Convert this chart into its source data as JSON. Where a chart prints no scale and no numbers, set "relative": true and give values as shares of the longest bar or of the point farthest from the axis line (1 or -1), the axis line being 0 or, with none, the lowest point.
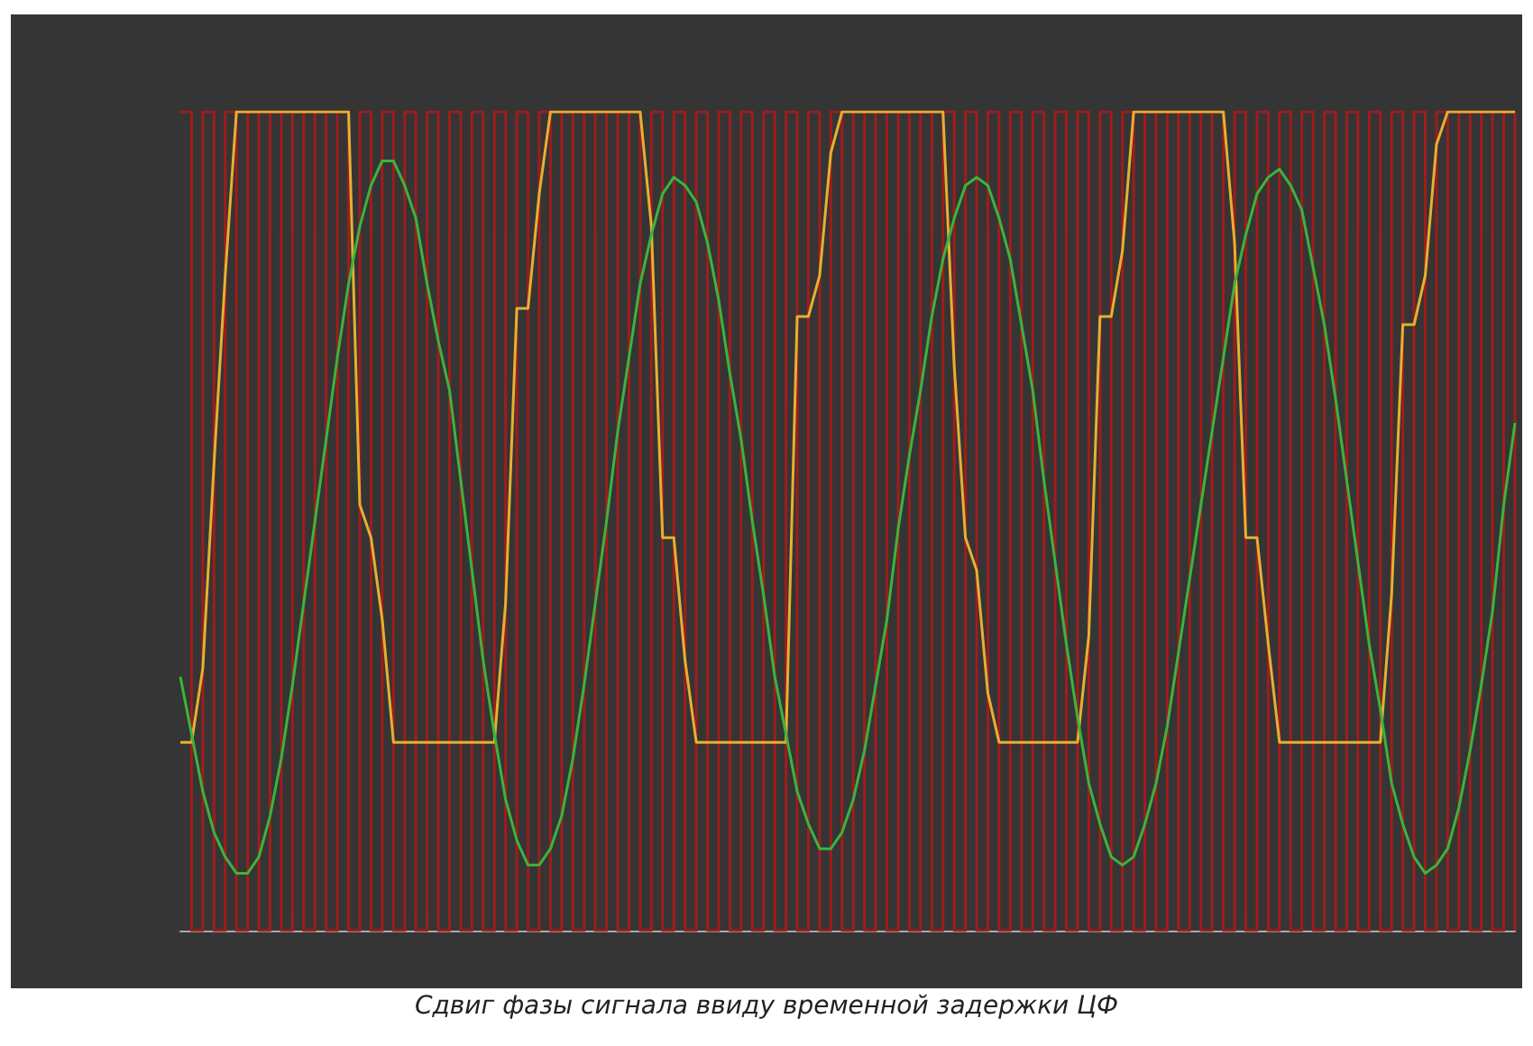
{
  "chart_data": {
    "type": "line",
    "relative": true,
    "marker": "none",
    "annotations": [
      "Сдвиг фазы сигнала ввиду временной задержки ЦФ"
    ],
    "categories": [
      null,
      null,
      null,
      null,
      null,
      null,
      null,
      null,
      null,
      null,
      null,
      null,
      null,
      null,
      null,
      null,
      null,
      null,
      null,
      null,
      null,
      null,
      null,
      null,
      null,
      null,
      null,
      null,
      null,
      null,
      null,
      null,
      null,
      null,
      null,
      null,
      null,
      null,
      null,
      null,
      null,
      null,
      null,
      null,
      null,
      null,
      null,
      null,
      null,
      null,
      null,
      null,
      null,
      null,
      null,
      null,
      null,
      null,
      null,
      null,
      null,
      null,
      null,
      null,
      null,
      null,
      null,
      null,
      null,
      null,
      null,
      null,
      null,
      null,
      null,
      null,
      null,
      null,
      null,
      null,
      null,
      null,
      null,
      null,
      null,
      null,
      null,
      null,
      null,
      null,
      null,
      null,
      null,
      null,
      null,
      null,
      null,
      null,
      null,
      null,
      null,
      null,
      null,
      null,
      null,
      null,
      null,
      null,
      null,
      null,
      null,
      null,
      null,
      null,
      null,
      null,
      null,
      null,
      null,
      null
    ],
    "series": [
      {
        "type": "step",
        "color": "#a01c1c",
        "values": [
          1,
          0,
          1,
          0,
          1,
          0,
          1,
          0,
          1,
          0,
          1,
          0,
          1,
          0,
          1,
          0,
          1,
          0,
          1,
          0,
          1,
          0,
          1,
          0,
          1,
          0,
          1,
          0,
          1,
          0,
          1,
          0,
          1,
          0,
          1,
          0,
          1,
          0,
          1,
          0,
          1,
          0,
          1,
          0,
          1,
          0,
          1,
          0,
          1,
          0,
          1,
          0,
          1,
          0,
          1,
          0,
          1,
          0,
          1,
          0,
          1,
          0,
          1,
          0,
          1,
          0,
          1,
          0,
          1,
          0,
          1,
          0,
          1,
          0,
          1,
          0,
          1,
          0,
          1,
          0,
          1,
          0,
          1,
          0,
          1,
          0,
          1,
          0,
          1,
          0,
          1,
          0,
          1,
          0,
          1,
          0,
          1,
          0,
          1,
          0,
          1,
          0,
          1,
          0,
          1,
          0,
          1,
          0,
          1,
          0,
          1,
          0,
          1,
          0,
          1,
          0,
          1,
          0,
          1,
          0
        ]
      },
      {
        "color": "#e6b030",
        "values": [
          0.23,
          0.23,
          0.32,
          0.57,
          0.8,
          1,
          1,
          1,
          1,
          1,
          1,
          1,
          1,
          1,
          1,
          1,
          0.52,
          0.48,
          0.38,
          0.23,
          0.23,
          0.23,
          0.23,
          0.23,
          0.23,
          0.23,
          0.23,
          0.23,
          0.23,
          0.4,
          0.76,
          0.76,
          0.9,
          1,
          1,
          1,
          1,
          1,
          1,
          1,
          1,
          1,
          0.86,
          0.48,
          0.48,
          0.33,
          0.23,
          0.23,
          0.23,
          0.23,
          0.23,
          0.23,
          0.23,
          0.23,
          0.23,
          0.75,
          0.75,
          0.8,
          0.95,
          1,
          1,
          1,
          1,
          1,
          1,
          1,
          1,
          1,
          1,
          0.69,
          0.48,
          0.44,
          0.29,
          0.23,
          0.23,
          0.23,
          0.23,
          0.23,
          0.23,
          0.23,
          0.23,
          0.36,
          0.75,
          0.75,
          0.83,
          1,
          1,
          1,
          1,
          1,
          1,
          1,
          1,
          1,
          0.84,
          0.48,
          0.48,
          0.35,
          0.23,
          0.23,
          0.23,
          0.23,
          0.23,
          0.23,
          0.23,
          0.23,
          0.23,
          0.23,
          0.41,
          0.74,
          0.74,
          0.8,
          0.96,
          1,
          1,
          1,
          1,
          1,
          1,
          1
        ]
      },
      {
        "color": "#3cb43c",
        "values": [
          0.31,
          0.24,
          0.17,
          0.12,
          0.09,
          0.07,
          0.07,
          0.09,
          0.14,
          0.21,
          0.3,
          0.4,
          0.5,
          0.6,
          0.7,
          0.79,
          0.86,
          0.91,
          0.94,
          0.94,
          0.91,
          0.87,
          0.79,
          0.72,
          0.66,
          0.55,
          0.44,
          0.33,
          0.24,
          0.16,
          0.11,
          0.08,
          0.08,
          0.1,
          0.14,
          0.21,
          0.3,
          0.4,
          0.5,
          0.61,
          0.7,
          0.79,
          0.85,
          0.9,
          0.92,
          0.91,
          0.89,
          0.84,
          0.77,
          0.68,
          0.6,
          0.5,
          0.41,
          0.31,
          0.24,
          0.17,
          0.13,
          0.1,
          0.1,
          0.12,
          0.16,
          0.22,
          0.3,
          0.38,
          0.49,
          0.58,
          0.66,
          0.75,
          0.82,
          0.87,
          0.91,
          0.92,
          0.91,
          0.87,
          0.82,
          0.74,
          0.66,
          0.55,
          0.45,
          0.35,
          0.26,
          0.18,
          0.13,
          0.09,
          0.08,
          0.09,
          0.13,
          0.18,
          0.25,
          0.34,
          0.43,
          0.52,
          0.61,
          0.7,
          0.79,
          0.85,
          0.9,
          0.92,
          0.93,
          0.91,
          0.88,
          0.81,
          0.74,
          0.65,
          0.55,
          0.45,
          0.35,
          0.27,
          0.18,
          0.13,
          0.09,
          0.07,
          0.08,
          0.1,
          0.15,
          0.22,
          0.3,
          0.39,
          0.52,
          0.62
        ]
      }
    ]
  }
}
